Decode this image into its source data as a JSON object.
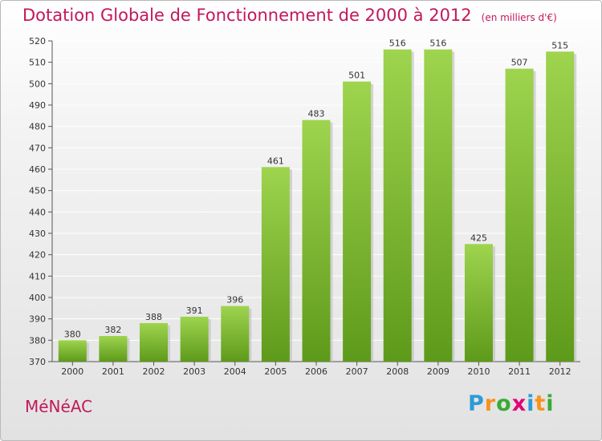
{
  "title": "Dotation Globale de Fonctionnement de 2000 à 2012",
  "unit_note": "(en milliers d'€)",
  "commune": "MéNéAC",
  "brand": {
    "letters": [
      "P",
      "r",
      "o",
      "x",
      "i",
      "t",
      "i"
    ],
    "colors": [
      "#2e9bd6",
      "#f7941d",
      "#3aaa35",
      "#e2007a",
      "#2e9bd6",
      "#f7941d",
      "#3aaa35"
    ]
  },
  "colors": {
    "bar_top": "#9ed44e",
    "bar_bottom": "#5e9a1a",
    "title": "#c2185b",
    "grid": "#ffffff"
  },
  "chart_data": {
    "type": "bar",
    "title": "Dotation Globale de Fonctionnement de 2000 à 2012",
    "subtitle": "(en milliers d'€)",
    "categories": [
      "2000",
      "2001",
      "2002",
      "2003",
      "2004",
      "2005",
      "2006",
      "2007",
      "2008",
      "2009",
      "2010",
      "2011",
      "2012"
    ],
    "values": [
      380,
      382,
      388,
      391,
      396,
      461,
      483,
      501,
      516,
      516,
      425,
      507,
      515
    ],
    "ylim": [
      370,
      520
    ],
    "ytick_step": 10,
    "grid": true,
    "legend": "none"
  }
}
